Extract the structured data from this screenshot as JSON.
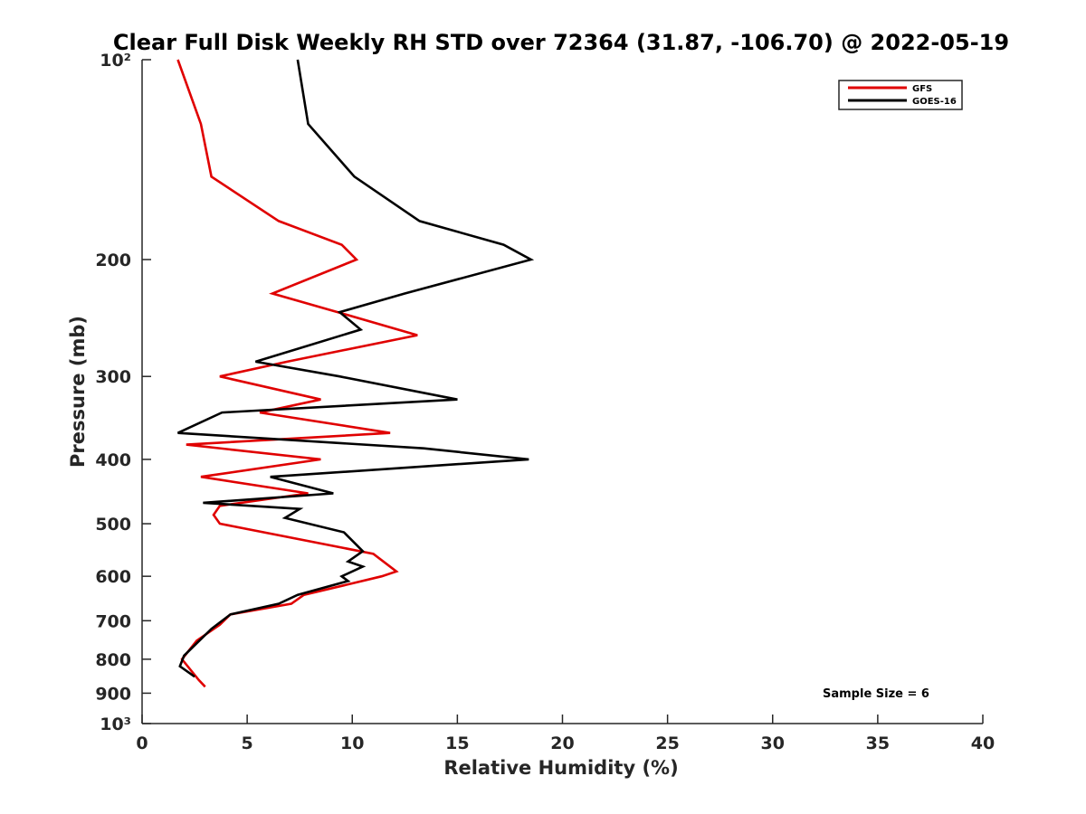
{
  "chart_data": {
    "type": "line",
    "title": "Clear Full Disk Weekly RH STD over 72364 (31.87, -106.70) @ 2022-05-19",
    "xlabel": "Relative Humidity (%)",
    "ylabel": "Pressure (mb)",
    "xlim": [
      0,
      40
    ],
    "ylim": [
      100,
      1000
    ],
    "yscale": "log",
    "y_reversed": true,
    "grid": false,
    "legend_position": "top-right",
    "xticks": [
      0,
      5,
      10,
      15,
      20,
      25,
      30,
      35,
      40
    ],
    "xtick_labels": [
      "0",
      "5",
      "10",
      "15",
      "20",
      "25",
      "30",
      "35",
      "40"
    ],
    "yticks": [
      100,
      200,
      300,
      400,
      500,
      600,
      700,
      800,
      900,
      1000
    ],
    "ytick_labels": [
      "10²",
      "200",
      "300",
      "400",
      "500",
      "600",
      "700",
      "800",
      "900",
      "10³"
    ],
    "annotation": "Sample Size = 6",
    "series": [
      {
        "name": "GFS",
        "color": "#e00000",
        "points": [
          [
            1.7,
            100
          ],
          [
            2.8,
            125
          ],
          [
            3.3,
            150
          ],
          [
            6.5,
            175
          ],
          [
            9.5,
            190
          ],
          [
            10.2,
            200
          ],
          [
            6.2,
            225
          ],
          [
            9.3,
            240
          ],
          [
            13.1,
            260
          ],
          [
            6.9,
            285
          ],
          [
            3.7,
            300
          ],
          [
            8.5,
            325
          ],
          [
            5.6,
            340
          ],
          [
            11.8,
            365
          ],
          [
            2.1,
            380
          ],
          [
            8.5,
            400
          ],
          [
            2.8,
            425
          ],
          [
            7.9,
            450
          ],
          [
            3.7,
            470
          ],
          [
            3.4,
            485
          ],
          [
            3.7,
            500
          ],
          [
            11.0,
            555
          ],
          [
            12.1,
            590
          ],
          [
            11.4,
            600
          ],
          [
            10.0,
            615
          ],
          [
            7.7,
            640
          ],
          [
            7.1,
            660
          ],
          [
            4.2,
            685
          ],
          [
            3.7,
            710
          ],
          [
            2.6,
            750
          ],
          [
            1.9,
            800
          ],
          [
            2.7,
            860
          ],
          [
            3.0,
            880
          ]
        ]
      },
      {
        "name": "GOES-16",
        "color": "#000000",
        "points": [
          [
            7.4,
            100
          ],
          [
            7.9,
            125
          ],
          [
            10.1,
            150
          ],
          [
            13.2,
            175
          ],
          [
            17.2,
            190
          ],
          [
            18.5,
            200
          ],
          [
            12.5,
            225
          ],
          [
            9.4,
            240
          ],
          [
            10.4,
            255
          ],
          [
            5.4,
            285
          ],
          [
            9.4,
            300
          ],
          [
            15.0,
            325
          ],
          [
            3.8,
            340
          ],
          [
            1.7,
            365
          ],
          [
            13.4,
            385
          ],
          [
            18.4,
            400
          ],
          [
            6.1,
            425
          ],
          [
            9.1,
            450
          ],
          [
            2.9,
            465
          ],
          [
            7.5,
            475
          ],
          [
            6.8,
            490
          ],
          [
            9.6,
            515
          ],
          [
            10.5,
            550
          ],
          [
            9.8,
            570
          ],
          [
            10.5,
            580
          ],
          [
            9.5,
            600
          ],
          [
            9.8,
            610
          ],
          [
            7.4,
            640
          ],
          [
            6.5,
            660
          ],
          [
            4.2,
            685
          ],
          [
            3.3,
            720
          ],
          [
            2.0,
            790
          ],
          [
            1.8,
            820
          ],
          [
            2.5,
            850
          ]
        ]
      }
    ]
  }
}
